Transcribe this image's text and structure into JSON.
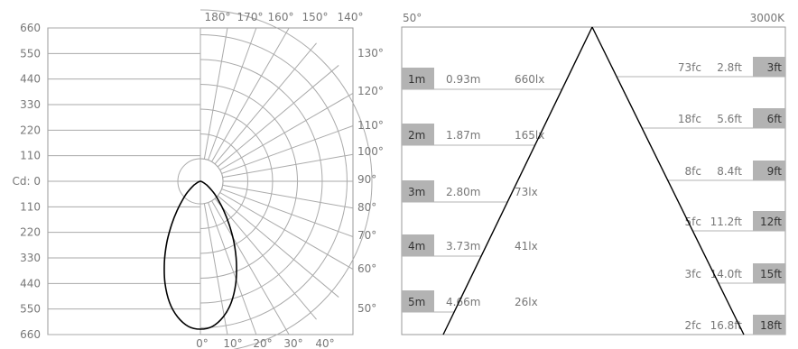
{
  "polar_chart": {
    "cd_ticks": [
      "660",
      "550",
      "440",
      "330",
      "220",
      "110",
      "Cd: 0",
      "110",
      "220",
      "330",
      "440",
      "550",
      "660"
    ],
    "angle_labels_top": [
      "180°",
      "170°",
      "160°",
      "150°",
      "140°"
    ],
    "angle_labels_right": [
      "130°",
      "120°",
      "110°",
      "100°",
      "90°",
      "80°",
      "70°",
      "60°",
      "50°"
    ],
    "angle_labels_bottom": [
      "0°",
      "10°",
      "20°",
      "30°",
      "40°"
    ]
  },
  "cone_chart": {
    "beam_angle_label": "50°",
    "color_temp_label": "3000K",
    "metric_rows": [
      {
        "distance": "1m",
        "diameter": "0.93m",
        "lux": "660lx"
      },
      {
        "distance": "2m",
        "diameter": "1.87m",
        "lux": "165lx"
      },
      {
        "distance": "3m",
        "diameter": "2.80m",
        "lux": "73lx"
      },
      {
        "distance": "4m",
        "diameter": "3.73m",
        "lux": "41lx"
      },
      {
        "distance": "5m",
        "diameter": "4.66m",
        "lux": "26lx"
      }
    ],
    "imperial_rows": [
      {
        "fc": "73fc",
        "diameter": "2.8ft",
        "distance": "3ft"
      },
      {
        "fc": "18fc",
        "diameter": "5.6ft",
        "distance": "6ft"
      },
      {
        "fc": "8fc",
        "diameter": "8.4ft",
        "distance": "9ft"
      },
      {
        "fc": "5fc",
        "diameter": "11.2ft",
        "distance": "12ft"
      },
      {
        "fc": "3fc",
        "diameter": "14.0ft",
        "distance": "15ft"
      },
      {
        "fc": "2fc",
        "diameter": "16.8ft",
        "distance": "18ft"
      }
    ]
  },
  "chart_data": [
    {
      "type": "polar",
      "title": "",
      "axis_label": "Cd",
      "r_range": [
        0,
        660
      ],
      "r_ticks": [
        0,
        110,
        220,
        330,
        440,
        550,
        660
      ],
      "angle_ticks_deg": [
        0,
        10,
        20,
        30,
        40,
        50,
        60,
        70,
        80,
        90,
        100,
        110,
        120,
        130,
        140,
        150,
        160,
        170,
        180
      ],
      "series": [
        {
          "angles_deg": [
            0,
            5,
            10,
            15,
            20,
            25,
            30,
            35,
            40,
            45,
            50,
            55,
            60,
            65,
            70,
            75,
            80,
            85,
            90
          ],
          "cd": [
            660,
            650,
            615,
            560,
            485,
            400,
            315,
            235,
            170,
            120,
            85,
            55,
            35,
            20,
            10,
            5,
            2,
            1,
            0
          ]
        }
      ]
    },
    {
      "type": "table",
      "title": "",
      "beam_angle": "50°",
      "color_temperature": "3000K",
      "metric": {
        "distance_m": [
          1,
          2,
          3,
          4,
          5
        ],
        "diameter_m": [
          0.93,
          1.87,
          2.8,
          3.73,
          4.66
        ],
        "illuminance_lx": [
          660,
          165,
          73,
          41,
          26
        ]
      },
      "imperial": {
        "distance_ft": [
          3,
          6,
          9,
          12,
          15,
          18
        ],
        "diameter_ft": [
          2.8,
          5.6,
          8.4,
          11.2,
          14.0,
          16.8
        ],
        "illuminance_fc": [
          73,
          18,
          8,
          5,
          3,
          2
        ]
      }
    }
  ]
}
